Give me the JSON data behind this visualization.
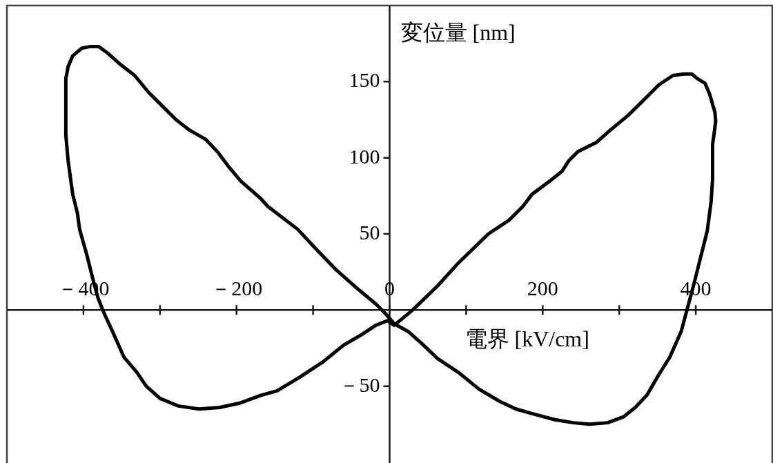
{
  "chart_data": {
    "type": "line",
    "xlabel": "電界 [kV/cm]",
    "ylabel": "変位量 [nm]",
    "series": [
      {
        "color": "#000000",
        "x": [
          -423,
          -423,
          -420,
          -414,
          -402,
          -392,
          -380,
          -369,
          -351,
          -333,
          -315,
          -297,
          -279,
          -261,
          -240,
          -225,
          -210,
          -195,
          -168,
          -159,
          -120,
          -96,
          -69,
          -42,
          -18,
          -6,
          6,
          24,
          42,
          63,
          90,
          117,
          144,
          165,
          186,
          216,
          240,
          261,
          285,
          306,
          321,
          336,
          351,
          366,
          381,
          389,
          397,
          406,
          415,
          420,
          422,
          422,
          424,
          426,
          425,
          418,
          412,
          402,
          395,
          384,
          370,
          352,
          336,
          312,
          288,
          270,
          246,
          234,
          225,
          210,
          186,
          174,
          156,
          129,
          90,
          63,
          30,
          18,
          6,
          -3,
          -18,
          -36,
          -60,
          -87,
          -117,
          -147,
          -168,
          -195,
          -222,
          -249,
          -276,
          -300,
          -318,
          -330,
          -347,
          -363,
          -374,
          -381,
          -387,
          -396,
          -405,
          -408,
          -414,
          -420,
          -423,
          -423
        ],
        "values": [
          136,
          152,
          160,
          167,
          172,
          173,
          173,
          169,
          161,
          154,
          143,
          134,
          125,
          118,
          112,
          104,
          94,
          85,
          73,
          68,
          53,
          40,
          26,
          14,
          4,
          -2,
          -9,
          -14,
          -22,
          -32,
          -41,
          -52,
          -60,
          -65,
          -68,
          -72,
          -74,
          -75,
          -74,
          -70,
          -64,
          -56,
          -43,
          -31,
          -14,
          1,
          16,
          34,
          52,
          71,
          86,
          109,
          116,
          124,
          130,
          142,
          149,
          152,
          155,
          155,
          154,
          148,
          140,
          128,
          118,
          110,
          104,
          98,
          91,
          85,
          76,
          68,
          59,
          50,
          31,
          16,
          0,
          -5,
          -10,
          -7,
          -10,
          -16,
          -23,
          -34,
          -44,
          -53,
          -56,
          -61,
          -64,
          -65,
          -63,
          -58,
          -50,
          -41,
          -31,
          -13,
          -1,
          8,
          19,
          37,
          53,
          64,
          76,
          98,
          115,
          146
        ]
      }
    ],
    "xlim": [
      -500,
      500
    ],
    "ylim": [
      -100,
      200
    ],
    "xticks": [
      {
        "value": -400,
        "label": "－400"
      },
      {
        "value": -300,
        "label": null
      },
      {
        "value": -200,
        "label": "－200"
      },
      {
        "value": -100,
        "label": null
      },
      0,
      {
        "value": 100,
        "label": null
      },
      200,
      {
        "value": 300,
        "label": null
      },
      400
    ],
    "yticks": [
      {
        "value": -50,
        "label": "－50"
      },
      50,
      100,
      150
    ]
  }
}
